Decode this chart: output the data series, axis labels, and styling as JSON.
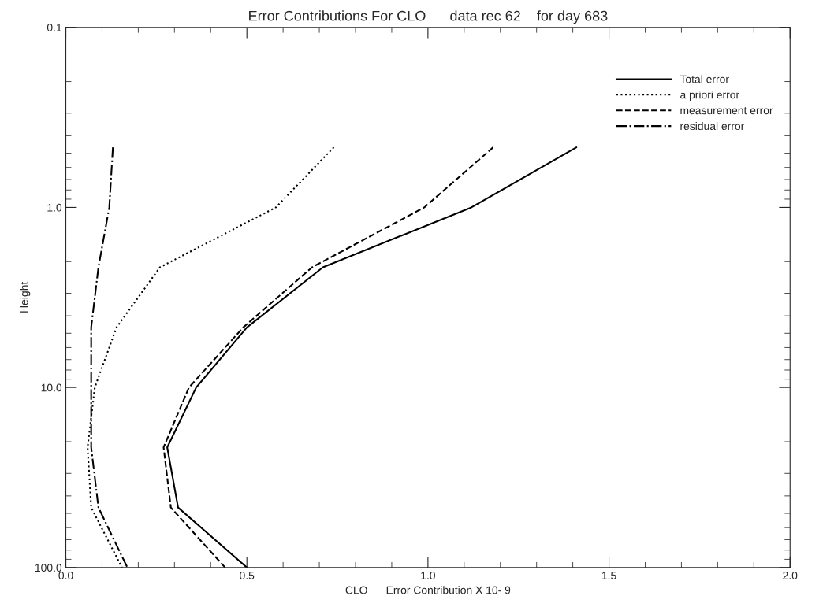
{
  "chart_data": {
    "type": "line",
    "title": "Error Contributions For CLO      data rec 62    for day 683",
    "xlabel": "CLO      Error Contribution X 10- 9",
    "ylabel": "Height",
    "series": [
      {
        "name": "Total error",
        "color": "#000000",
        "line_style": "solid",
        "x": [
          1.41,
          1.12,
          0.71,
          0.5,
          0.36,
          0.28,
          0.31,
          0.5
        ],
        "values": [
          0.464,
          1,
          2.15,
          4.64,
          10,
          21.5,
          46.4,
          100
        ]
      },
      {
        "name": "a priori error",
        "color": "#000000",
        "line_style": "dotted",
        "x": [
          0.74,
          0.58,
          0.26,
          0.14,
          0.08,
          0.06,
          0.07,
          0.155
        ],
        "values": [
          0.464,
          1,
          2.15,
          4.64,
          10,
          21.5,
          46.4,
          100
        ]
      },
      {
        "name": "measurement error",
        "color": "#000000",
        "line_style": "dashed",
        "x": [
          1.18,
          0.99,
          0.68,
          0.49,
          0.34,
          0.27,
          0.29,
          0.44
        ],
        "values": [
          0.464,
          1,
          2.15,
          4.64,
          10,
          21.5,
          46.4,
          100
        ]
      },
      {
        "name": "residual error",
        "color": "#000000",
        "line_style": "dashdot",
        "x": [
          0.13,
          0.12,
          0.09,
          0.07,
          0.07,
          0.07,
          0.09,
          0.17
        ],
        "values": [
          0.464,
          1,
          2.15,
          4.64,
          10,
          21.5,
          46.4,
          100
        ]
      }
    ],
    "log": "y",
    "xlim": [
      0,
      2
    ],
    "xticks": [
      {
        "value": 0,
        "label": "0.0"
      },
      0.5,
      {
        "value": 1,
        "label": "1.0"
      },
      1.5,
      {
        "value": 2,
        "label": "2.0"
      }
    ],
    "ylim": [
      100,
      0.1
    ],
    "yticks": [
      0.1,
      {
        "value": 1,
        "label": "1.0"
      },
      {
        "value": 10,
        "label": "10.0"
      },
      {
        "value": 100,
        "label": "100.0"
      }
    ],
    "grid": false,
    "legend": "top right",
    "marker": "none"
  }
}
